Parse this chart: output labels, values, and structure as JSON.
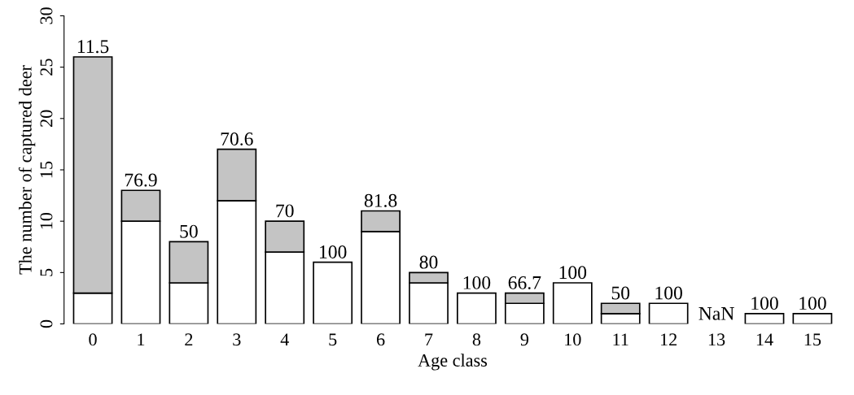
{
  "chart_data": {
    "type": "bar",
    "stacked": true,
    "xlabel": "Age class",
    "ylabel": "The number of captured deer",
    "categories": [
      "0",
      "1",
      "2",
      "3",
      "4",
      "5",
      "6",
      "7",
      "8",
      "9",
      "10",
      "11",
      "12",
      "13",
      "14",
      "15"
    ],
    "series": [
      {
        "color": "#ffffff",
        "values": [
          3,
          10,
          4,
          12,
          7,
          6,
          9,
          4,
          3,
          2,
          4,
          1,
          2,
          0,
          1,
          1
        ]
      },
      {
        "color": "#c4c4c4",
        "values": [
          23,
          3,
          4,
          5,
          3,
          0,
          2,
          1,
          0,
          1,
          0,
          1,
          0,
          0,
          0,
          0
        ]
      }
    ],
    "annotations": [
      {
        "text": "11.5",
        "x": "0",
        "y": 26
      },
      {
        "text": "76.9",
        "x": "1",
        "y": 13
      },
      {
        "text": "50",
        "x": "2",
        "y": 8
      },
      {
        "text": "70.6",
        "x": "3",
        "y": 17
      },
      {
        "text": "70",
        "x": "4",
        "y": 10
      },
      {
        "text": "100",
        "x": "5",
        "y": 6
      },
      {
        "text": "81.8",
        "x": "6",
        "y": 11
      },
      {
        "text": "80",
        "x": "7",
        "y": 5
      },
      {
        "text": "100",
        "x": "8",
        "y": 3
      },
      {
        "text": "66.7",
        "x": "9",
        "y": 3
      },
      {
        "text": "100",
        "x": "10",
        "y": 4
      },
      {
        "text": "50",
        "x": "11",
        "y": 2
      },
      {
        "text": "100",
        "x": "12",
        "y": 2
      },
      {
        "text": "NaN",
        "x": "13",
        "y": 0
      },
      {
        "text": "100",
        "x": "14",
        "y": 1
      },
      {
        "text": "100",
        "x": "15",
        "y": 1
      }
    ],
    "ylim": [
      0,
      30
    ],
    "yticks": [
      0,
      5,
      10,
      15,
      20,
      25,
      30
    ],
    "grid": false,
    "legend": false
  }
}
